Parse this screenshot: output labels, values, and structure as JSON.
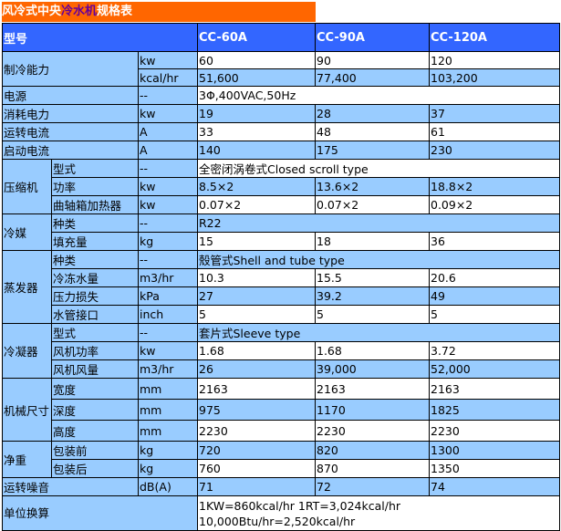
{
  "title": {
    "prefix": "风冷式中央",
    "highlight": "冷水机",
    "suffix": "规格表"
  },
  "header": {
    "label": "型号",
    "models": [
      "CC-60A",
      "CC-90A",
      "CC-120A"
    ]
  },
  "rows": [
    {
      "group": "制冷能力",
      "sub": "",
      "unit": "kw",
      "values": [
        "60",
        "90",
        "120"
      ]
    },
    {
      "group": "",
      "sub": "",
      "unit": "kcal/hr",
      "values": [
        "51,600",
        "77,400",
        "103,200"
      ]
    },
    {
      "group": "电源",
      "sub": "",
      "unit": "--",
      "values": [
        "3Φ,400VAC,50Hz"
      ]
    },
    {
      "group": "消耗电力",
      "sub": "",
      "unit": "kw",
      "values": [
        "19",
        "28",
        "37"
      ]
    },
    {
      "group": "运转电流",
      "sub": "",
      "unit": "A",
      "values": [
        "33",
        "48",
        "61"
      ]
    },
    {
      "group": "启动电流",
      "sub": "",
      "unit": "A",
      "values": [
        "140",
        "175",
        "230"
      ]
    },
    {
      "group": "压缩机",
      "sub": "型式",
      "unit": "--",
      "values": [
        "全密闭涡卷式Closed scroll type"
      ]
    },
    {
      "group": "",
      "sub": "功率",
      "unit": "kw",
      "values": [
        "8.5×2",
        "13.6×2",
        "18.8×2"
      ]
    },
    {
      "group": "",
      "sub": "曲轴箱加热器",
      "unit": "kw",
      "values": [
        "0.07×2",
        "0.07×2",
        "0.09×2"
      ]
    },
    {
      "group": "冷媒",
      "sub": "种类",
      "unit": "--",
      "values": [
        "R22"
      ]
    },
    {
      "group": "",
      "sub": "填充量",
      "unit": "kg",
      "values": [
        "15",
        "18",
        "36"
      ]
    },
    {
      "group": "蒸发器",
      "sub": "种类",
      "unit": "--",
      "values": [
        "殼管式Shell and tube type"
      ]
    },
    {
      "group": "",
      "sub": "冷冻水量",
      "unit": "m3/hr",
      "values": [
        "10.3",
        "15.5",
        "20.6"
      ]
    },
    {
      "group": "",
      "sub": "压力损失",
      "unit": "kPa",
      "values": [
        "27",
        "39.2",
        "49"
      ]
    },
    {
      "group": "",
      "sub": "水管接口",
      "unit": "inch",
      "values": [
        "5",
        "5",
        "5"
      ]
    },
    {
      "group": "冷凝器",
      "sub": "型式",
      "unit": "--",
      "values": [
        "套片式Sleeve type"
      ]
    },
    {
      "group": "",
      "sub": "风机功率",
      "unit": "kw",
      "values": [
        "1.68",
        "1.68",
        "3.72"
      ]
    },
    {
      "group": "",
      "sub": "风机风量",
      "unit": "m3/hr",
      "values": [
        "26",
        "39,000",
        "52,000"
      ]
    },
    {
      "group": "机械尺寸",
      "sub": "宽度",
      "unit": "mm",
      "values": [
        "2163",
        "2163",
        "2163"
      ]
    },
    {
      "group": "",
      "sub": "深度",
      "unit": "mm",
      "values": [
        "975",
        "1170",
        "1825"
      ]
    },
    {
      "group": "",
      "sub": "高度",
      "unit": "mm",
      "values": [
        "2230",
        "2230",
        "2230"
      ]
    },
    {
      "group": "净重",
      "sub": "包装前",
      "unit": "kg",
      "values": [
        "720",
        "820",
        "1300"
      ]
    },
    {
      "group": "",
      "sub": "包装后",
      "unit": "kg",
      "values": [
        "760",
        "870",
        "1350"
      ]
    },
    {
      "group": "运转噪音",
      "sub": "",
      "unit": "dB(A)",
      "values": [
        "71",
        "72",
        "74"
      ]
    }
  ],
  "conversion": {
    "label": "单位换算",
    "line1": "1KW=860kcal/hr 1RT=3,024kcal/hr",
    "line2": "10,000Btu/hr=2,520kcal/hr"
  },
  "colors": {
    "title_bg": "#FF6600",
    "header_bg": "#3366FF",
    "label_bg": "#99CCFF",
    "stripe": "#99CCFF"
  }
}
